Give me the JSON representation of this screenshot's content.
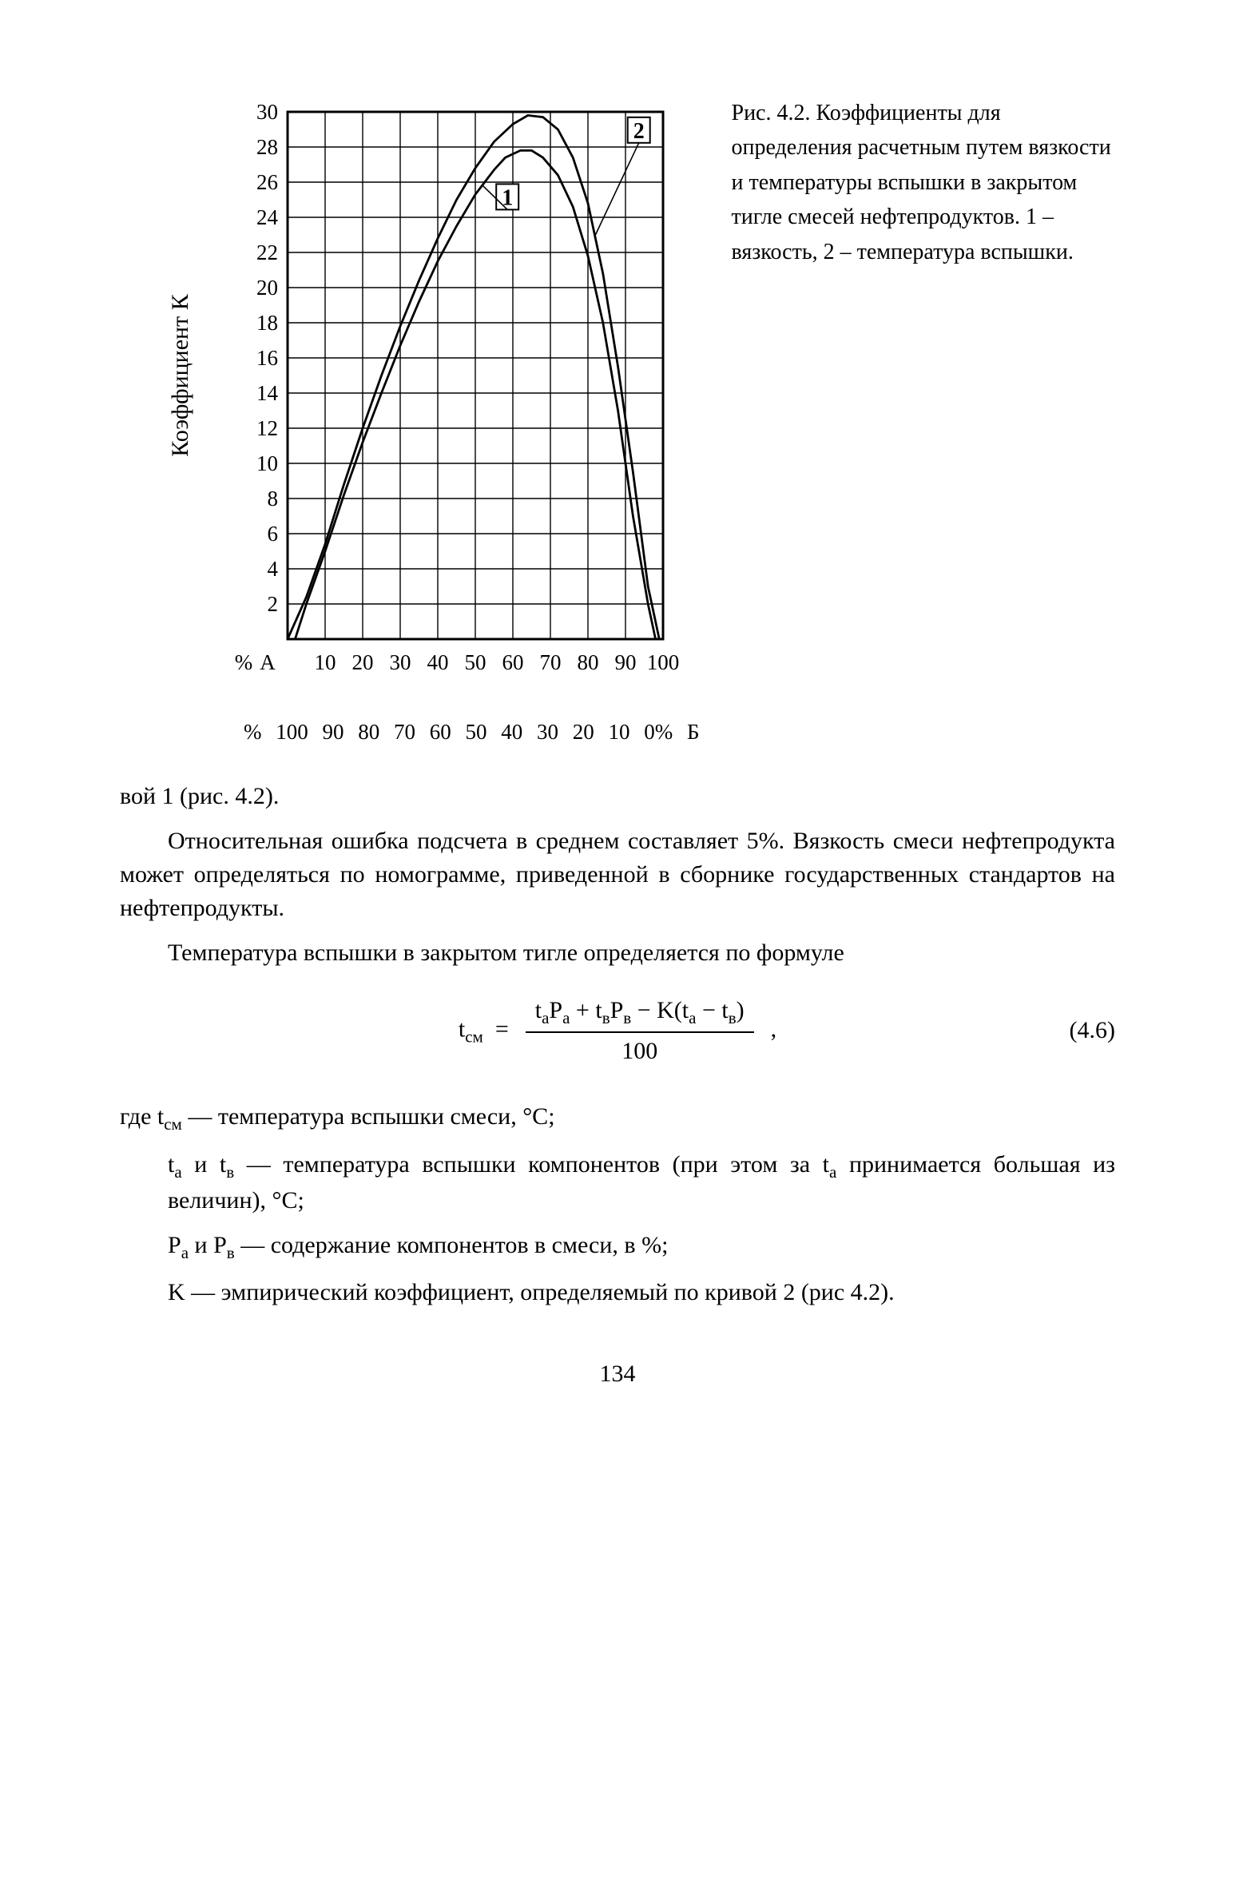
{
  "chart": {
    "type": "line",
    "y_label": "Коэффициент К",
    "y_ticks": [
      2,
      4,
      6,
      8,
      10,
      12,
      14,
      16,
      18,
      20,
      22,
      24,
      26,
      28,
      30
    ],
    "x_ticks_A": [
      "%",
      "А",
      "10",
      "20",
      "30",
      "40",
      "50",
      "60",
      "70",
      "80",
      "90",
      "100"
    ],
    "x_ticks_B": [
      "%",
      "100",
      "90",
      "80",
      "70",
      "60",
      "50",
      "40",
      "30",
      "20",
      "10",
      "0%",
      "Б"
    ],
    "x_domain": [
      0,
      100
    ],
    "y_domain": [
      0,
      30
    ],
    "grid_color": "#000000",
    "grid_width": 1.4,
    "background_color": "#ffffff",
    "curve_color": "#000000",
    "curve_width": 2.8,
    "curve1_label": "1",
    "curve2_label": "2",
    "label_box_fill": "#ffffff",
    "label_box_stroke": "#000000",
    "curve1": [
      [
        2,
        0
      ],
      [
        5,
        2
      ],
      [
        10,
        5
      ],
      [
        15,
        8.2
      ],
      [
        20,
        11.2
      ],
      [
        25,
        14
      ],
      [
        30,
        16.7
      ],
      [
        35,
        19.2
      ],
      [
        40,
        21.5
      ],
      [
        45,
        23.5
      ],
      [
        50,
        25.3
      ],
      [
        55,
        26.7
      ],
      [
        58,
        27.4
      ],
      [
        62,
        27.8
      ],
      [
        65,
        27.8
      ],
      [
        68,
        27.4
      ],
      [
        72,
        26.4
      ],
      [
        76,
        24.6
      ],
      [
        80,
        21.8
      ],
      [
        84,
        18
      ],
      [
        88,
        13
      ],
      [
        92,
        7
      ],
      [
        96,
        2
      ],
      [
        98,
        0
      ]
    ],
    "curve2": [
      [
        0,
        0
      ],
      [
        5,
        2.4
      ],
      [
        10,
        5.4
      ],
      [
        15,
        8.8
      ],
      [
        20,
        12
      ],
      [
        25,
        15
      ],
      [
        30,
        17.8
      ],
      [
        35,
        20.4
      ],
      [
        40,
        22.8
      ],
      [
        45,
        25
      ],
      [
        50,
        26.8
      ],
      [
        55,
        28.3
      ],
      [
        60,
        29.3
      ],
      [
        64,
        29.8
      ],
      [
        68,
        29.7
      ],
      [
        72,
        29
      ],
      [
        76,
        27.4
      ],
      [
        80,
        24.8
      ],
      [
        84,
        20.8
      ],
      [
        88,
        15.5
      ],
      [
        92,
        9.5
      ],
      [
        96,
        3
      ],
      [
        99,
        0
      ]
    ]
  },
  "caption": {
    "title": "Рис. 4.2.",
    "text": " Коэффициенты для определения расчетным путем вязкости и температуры вспышки в закрытом тигле смесей нефтепродуктов. 1 – вязкость, 2 – температура вспышки."
  },
  "fragment": "вой 1 (рис. 4.2).",
  "para1": "Относительная ошибка подсчета в среднем составляет 5%. Вязкость смеси нефтепродукта может определяться по номограмме, приведенной в сборнике государственных стандартов на нефтепродукты.",
  "para2": "Температура вспышки в закрытом тигле определяется по формуле",
  "formula": {
    "lhs": "t",
    "lhs_sub": "см",
    "num_parts": {
      "t_a": "t",
      "sub_a": "а",
      "P_a": "P",
      "Psub_a": "а",
      "plus": " + ",
      "t_b": "t",
      "sub_b": "в",
      "P_b": "P",
      "Psub_b": "в",
      "minus": " − K(",
      "t_a2": "t",
      "sub_a2": "а",
      "minus2": " − ",
      "t_b2": "t",
      "sub_b2": "в",
      "close": ")"
    },
    "den": "100",
    "eqnum": "(4.6)"
  },
  "where": {
    "l1a": "где  t",
    "l1sub": "см",
    "l1b": " — температура вспышки смеси, °C;",
    "l2a": "t",
    "l2sub1": "а",
    "l2mid": " и t",
    "l2sub2": "в",
    "l2b": " — температура вспышки компонентов (при этом за t",
    "l2sub3": "а",
    "l2c": " принимается большая из величин), °C;",
    "l3a": "P",
    "l3sub1": "а",
    "l3mid": " и P",
    "l3sub2": "в",
    "l3b": " — содержание компонентов в смеси, в %;",
    "l4": "K — эмпирический коэффициент, определяемый по кривой 2 (рис 4.2)."
  },
  "pagenum": "134"
}
